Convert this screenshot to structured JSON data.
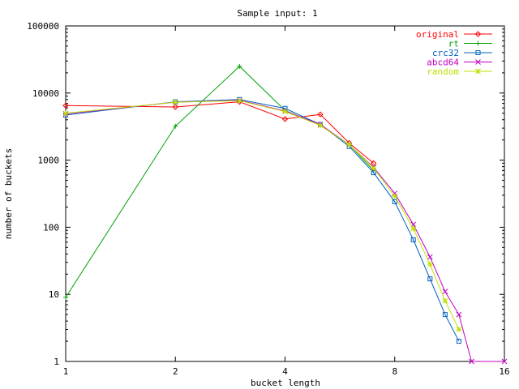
{
  "chart_data": {
    "type": "line",
    "title": "Sample input: 1",
    "xlabel": "bucket length",
    "ylabel": "number of buckets",
    "xscale": "log2",
    "yscale": "log10",
    "xlim": [
      1,
      16
    ],
    "ylim": [
      1,
      100000
    ],
    "x_ticks": [
      1,
      2,
      4,
      8,
      16
    ],
    "x_tick_labels": [
      "1",
      "2",
      "4",
      "8",
      "16"
    ],
    "y_ticks": [
      1,
      10,
      100,
      1000,
      10000,
      100000
    ],
    "y_tick_labels": [
      "1",
      "10",
      "100",
      "1000",
      "10000",
      "100000"
    ],
    "grid": false,
    "legend_position": "top-right",
    "series": [
      {
        "name": "original",
        "color": "#ff0000",
        "marker": "diamond",
        "points": [
          [
            1,
            6500
          ],
          [
            2,
            6200
          ],
          [
            3,
            7400
          ],
          [
            4,
            4100
          ],
          [
            5,
            4800
          ],
          [
            6,
            1800
          ],
          [
            7,
            900
          ]
        ]
      },
      {
        "name": "rt",
        "color": "#00a000",
        "marker": "plus",
        "points": [
          [
            1,
            9
          ],
          [
            2,
            3200
          ],
          [
            3,
            25000
          ],
          [
            4,
            5500
          ],
          [
            5,
            3300
          ],
          [
            6,
            1700
          ],
          [
            7,
            700
          ]
        ]
      },
      {
        "name": "crc32",
        "color": "#0060c0",
        "marker": "square",
        "points": [
          [
            1,
            4700
          ],
          [
            2,
            7400
          ],
          [
            3,
            8000
          ],
          [
            4,
            5900
          ],
          [
            5,
            3400
          ],
          [
            6,
            1600
          ],
          [
            7,
            650
          ],
          [
            8,
            240
          ],
          [
            9,
            65
          ],
          [
            10,
            17
          ],
          [
            11,
            5
          ],
          [
            12,
            2
          ]
        ]
      },
      {
        "name": "abcd64",
        "color": "#c000c0",
        "marker": "cross",
        "points": [
          [
            1,
            4900
          ],
          [
            2,
            7300
          ],
          [
            3,
            7800
          ],
          [
            4,
            5400
          ],
          [
            5,
            3400
          ],
          [
            6,
            1700
          ],
          [
            7,
            780
          ],
          [
            8,
            320
          ],
          [
            9,
            110
          ],
          [
            10,
            36
          ],
          [
            11,
            11
          ],
          [
            12,
            5
          ],
          [
            13,
            1
          ],
          [
            16,
            1
          ]
        ]
      },
      {
        "name": "random",
        "color": "#c0e000",
        "marker": "star",
        "points": [
          [
            1,
            5000
          ],
          [
            2,
            7300
          ],
          [
            3,
            7700
          ],
          [
            4,
            5300
          ],
          [
            5,
            3300
          ],
          [
            6,
            1700
          ],
          [
            7,
            760
          ],
          [
            8,
            290
          ],
          [
            9,
            95
          ],
          [
            10,
            28
          ],
          [
            11,
            8
          ],
          [
            12,
            3
          ]
        ]
      }
    ]
  }
}
